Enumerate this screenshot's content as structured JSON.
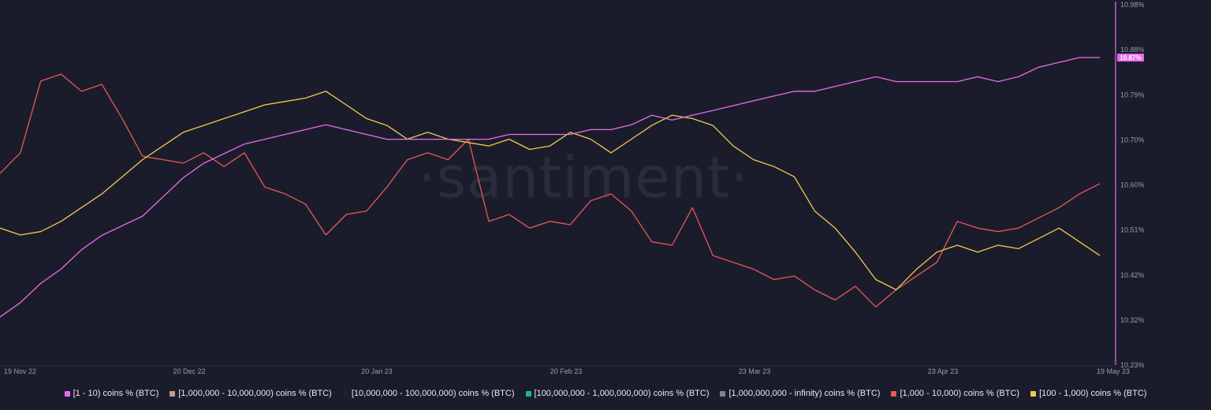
{
  "chart_data": {
    "type": "line",
    "watermark": "·santiment·",
    "x_ticks": [
      "19 Nov 22",
      "20 Dec 22",
      "20 Jan 23",
      "20 Feb 23",
      "23 Mar 23",
      "23 Apr 23",
      "19 May 23"
    ],
    "y_ticks": [
      "10.98%",
      "10.88%",
      "10.79%",
      "10.70%",
      "10.60%",
      "10.51%",
      "10.42%",
      "10.32%",
      "10.23%"
    ],
    "ylim": [
      10.23,
      10.98
    ],
    "last_value_label": "10.87%",
    "legend_placement": "bottom",
    "series": [
      {
        "name": "[1 - 10) coins % (BTC)",
        "color": "#e66ee8",
        "axis": "right",
        "values": [
          10.33,
          10.36,
          10.4,
          10.43,
          10.47,
          10.5,
          10.52,
          10.54,
          10.58,
          10.62,
          10.65,
          10.67,
          10.69,
          10.7,
          10.71,
          10.72,
          10.73,
          10.72,
          10.71,
          10.7,
          10.7,
          10.7,
          10.7,
          10.7,
          10.7,
          10.71,
          10.71,
          10.71,
          10.71,
          10.72,
          10.72,
          10.73,
          10.75,
          10.74,
          10.75,
          10.76,
          10.77,
          10.78,
          10.79,
          10.8,
          10.8,
          10.81,
          10.82,
          10.83,
          10.82,
          10.82,
          10.82,
          10.82,
          10.83,
          10.82,
          10.83,
          10.85,
          10.86,
          10.87,
          10.87
        ]
      },
      {
        "name": "[1,000,000 - 10,000,000) coins % (BTC)",
        "color": "#c49a8a",
        "values": []
      },
      {
        "name": "[10,000,000 - 100,000,000) coins % (BTC)",
        "color": "#1f2030",
        "values": []
      },
      {
        "name": "[100,000,000 - 1,000,000,000) coins % (BTC)",
        "color": "#1fb58a",
        "values": []
      },
      {
        "name": "[1,000,000,000 - infinity) coins % (BTC)",
        "color": "#7d8190",
        "values": []
      },
      {
        "name": "[1,000 - 10,000) coins % (BTC)",
        "color": "#e5585b",
        "axis": "left",
        "values": [
          0.56,
          0.62,
          0.83,
          0.85,
          0.8,
          0.82,
          0.72,
          0.61,
          0.6,
          0.59,
          0.62,
          0.58,
          0.62,
          0.52,
          0.5,
          0.47,
          0.38,
          0.44,
          0.45,
          0.52,
          0.6,
          0.62,
          0.6,
          0.66,
          0.42,
          0.44,
          0.4,
          0.42,
          0.41,
          0.48,
          0.5,
          0.45,
          0.36,
          0.35,
          0.46,
          0.32,
          0.3,
          0.28,
          0.25,
          0.26,
          0.22,
          0.19,
          0.23,
          0.17,
          0.22,
          0.26,
          0.3,
          0.42,
          0.4,
          0.39,
          0.4,
          0.43,
          0.46,
          0.5,
          0.53
        ]
      },
      {
        "name": "[100 - 1,000) coins % (BTC)",
        "color": "#f2c94c",
        "axis": "left",
        "values": [
          0.4,
          0.38,
          0.39,
          0.42,
          0.46,
          0.5,
          0.55,
          0.6,
          0.64,
          0.68,
          0.7,
          0.72,
          0.74,
          0.76,
          0.77,
          0.78,
          0.8,
          0.76,
          0.72,
          0.7,
          0.66,
          0.68,
          0.66,
          0.65,
          0.64,
          0.66,
          0.63,
          0.64,
          0.68,
          0.66,
          0.62,
          0.66,
          0.7,
          0.73,
          0.72,
          0.7,
          0.64,
          0.6,
          0.58,
          0.55,
          0.45,
          0.4,
          0.33,
          0.25,
          0.22,
          0.28,
          0.33,
          0.35,
          0.33,
          0.35,
          0.34,
          0.37,
          0.4,
          0.36,
          0.32
        ]
      }
    ]
  },
  "legend": {
    "items": [
      {
        "label": "[1 - 10) coins % (BTC)",
        "color": "#e66ee8"
      },
      {
        "label": "[1,000,000 - 10,000,000) coins % (BTC)",
        "color": "#c49a8a"
      },
      {
        "label": "[10,000,000 - 100,000,000) coins % (BTC)",
        "color": "#1f2030"
      },
      {
        "label": "[100,000,000 - 1,000,000,000) coins % (BTC)",
        "color": "#1fb58a"
      },
      {
        "label": "[1,000,000,000 - infinity) coins % (BTC)",
        "color": "#7d8190"
      },
      {
        "label": "[1,000 - 10,000) coins % (BTC)",
        "color": "#e5585b"
      },
      {
        "label": "[100 - 1,000) coins % (BTC)",
        "color": "#f2c94c"
      }
    ]
  }
}
